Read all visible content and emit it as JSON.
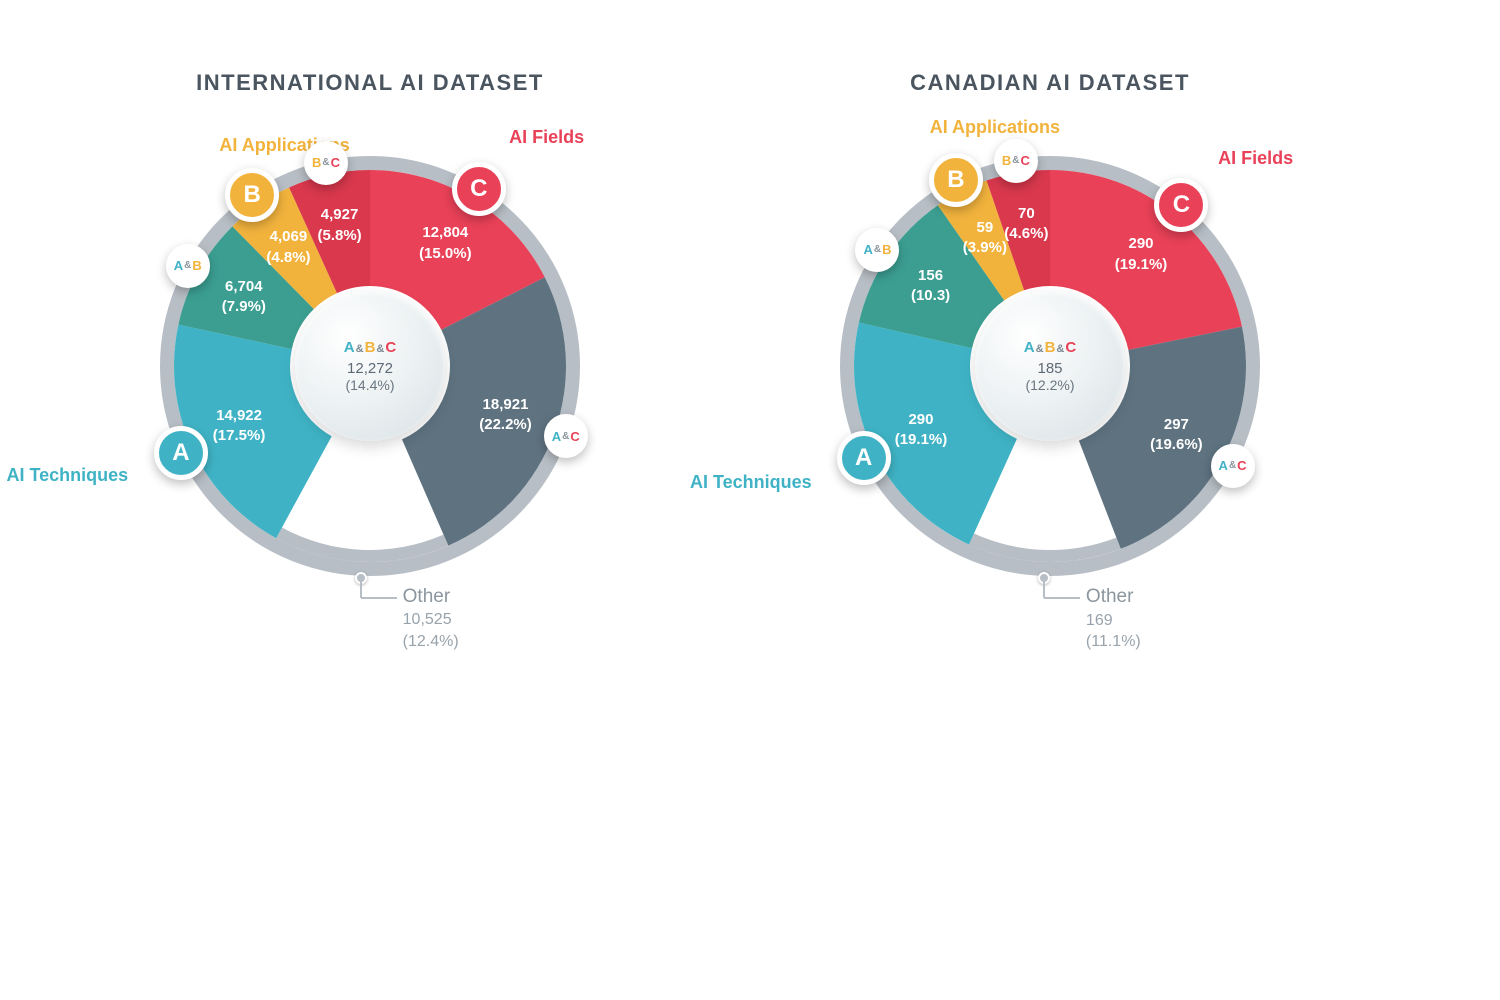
{
  "colors": {
    "teal": "#3fb3c5",
    "amber": "#f2b33d",
    "red": "#e94158",
    "tealDark": "#3b9e91",
    "redDark": "#d9384d",
    "slate": "#5e7280",
    "ring": "#b7bec5",
    "background": "#ffffff",
    "titleText": "#4a5560",
    "otherText": "#98a3ab"
  },
  "typography": {
    "title_fontsize": 22,
    "category_label_fontsize": 18,
    "segment_label_fontsize": 15,
    "center_fontsize": 15,
    "badge_big_fontsize": 24,
    "badge_small_fontsize": 13
  },
  "legend_categories": {
    "A": {
      "label": "AI Techniques",
      "color": "#3fb3c5"
    },
    "B": {
      "label": "AI Applications",
      "color": "#f2b33d"
    },
    "C": {
      "label": "AI Fields",
      "color": "#e94158"
    }
  },
  "charts": [
    {
      "id": "international",
      "title": "INTERNATIONAL AI DATASET",
      "type": "donut",
      "ring_color": "#b7bec5",
      "center": {
        "label_parts": [
          "A",
          "B",
          "C"
        ],
        "value": "12,272",
        "percent": "(14.4%)"
      },
      "start_angle_deg": 0,
      "badge_labels": {
        "big": {
          "A": "A",
          "B": "B",
          "C": "C"
        },
        "combos": {
          "AB": [
            "A",
            "B"
          ],
          "BC": [
            "B",
            "C"
          ],
          "AC": [
            "A",
            "C"
          ]
        }
      },
      "segments": [
        {
          "key": "C",
          "value": "12,804",
          "percent": "(15.0%)",
          "pct_num": 15.0,
          "color": "#e94158"
        },
        {
          "key": "AC",
          "value": "18,921",
          "percent": "(22.2%)",
          "pct_num": 22.2,
          "color": "#5e7280"
        },
        {
          "key": "other",
          "value": "10,525",
          "percent": "(12.4%)",
          "pct_num": 12.4,
          "color": "#b7bec5",
          "thin": true
        },
        {
          "key": "A",
          "value": "14,922",
          "percent": "(17.5%)",
          "pct_num": 17.5,
          "color": "#3fb3c5"
        },
        {
          "key": "AB",
          "value": "6,704",
          "percent": "(7.9%)",
          "pct_num": 7.9,
          "color": "#3b9e91"
        },
        {
          "key": "B",
          "value": "4,069",
          "percent": "(4.8%)",
          "pct_num": 4.8,
          "color": "#f2b33d"
        },
        {
          "key": "BC",
          "value": "4,927",
          "percent": "(5.8%)",
          "pct_num": 5.8,
          "color": "#d9384d"
        }
      ],
      "other_label": "Other"
    },
    {
      "id": "canadian",
      "title": "CANADIAN AI DATASET",
      "type": "donut",
      "ring_color": "#b7bec5",
      "center": {
        "label_parts": [
          "A",
          "B",
          "C"
        ],
        "value": "185",
        "percent": "(12.2%)"
      },
      "start_angle_deg": 0,
      "badge_labels": {
        "big": {
          "A": "A",
          "B": "B",
          "C": "C"
        },
        "combos": {
          "AB": [
            "A",
            "B"
          ],
          "BC": [
            "B",
            "C"
          ],
          "AC": [
            "A",
            "C"
          ]
        }
      },
      "segments": [
        {
          "key": "C",
          "value": "290",
          "percent": "(19.1%)",
          "pct_num": 19.1,
          "color": "#e94158"
        },
        {
          "key": "AC",
          "value": "297",
          "percent": "(19.6%)",
          "pct_num": 19.6,
          "color": "#5e7280"
        },
        {
          "key": "other",
          "value": "169",
          "percent": "(11.1%)",
          "pct_num": 11.1,
          "color": "#b7bec5",
          "thin": true
        },
        {
          "key": "A",
          "value": "290",
          "percent": "(19.1%)",
          "pct_num": 19.1,
          "color": "#3fb3c5"
        },
        {
          "key": "AB",
          "value": "156",
          "percent": "(10.3)",
          "pct_num": 10.3,
          "color": "#3b9e91"
        },
        {
          "key": "B",
          "value": "59",
          "percent": "(3.9%)",
          "pct_num": 3.9,
          "color": "#f2b33d"
        },
        {
          "key": "BC",
          "value": "70",
          "percent": "(4.6%)",
          "pct_num": 4.6,
          "color": "#d9384d"
        }
      ],
      "other_label": "Other"
    }
  ]
}
